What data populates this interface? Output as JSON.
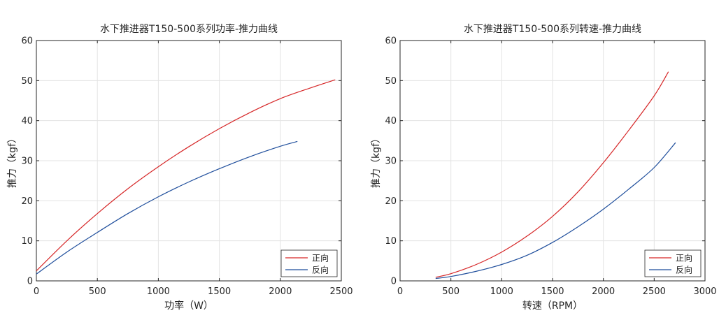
{
  "chart_data": [
    {
      "type": "line",
      "title": "水下推进器T150-500系列功率-推力曲线",
      "xlabel": "功率（W）",
      "ylabel": "推力（kgf）",
      "xlim": [
        0,
        2500
      ],
      "ylim": [
        0,
        60
      ],
      "xticks": [
        0,
        500,
        1000,
        1500,
        2000,
        2500
      ],
      "yticks": [
        0,
        10,
        20,
        30,
        40,
        50,
        60
      ],
      "grid": true,
      "legend_position": "bottom-right",
      "series": [
        {
          "name": "正向",
          "color": "#d62728",
          "x": [
            0,
            250,
            500,
            750,
            1000,
            1250,
            1500,
            1750,
            2000,
            2250,
            2450
          ],
          "y": [
            2.5,
            10.0,
            16.8,
            23.0,
            28.5,
            33.5,
            38.0,
            42.0,
            45.5,
            48.2,
            50.2
          ]
        },
        {
          "name": "反向",
          "color": "#1f4e9c",
          "x": [
            0,
            250,
            500,
            750,
            1000,
            1250,
            1500,
            1750,
            2000,
            2140
          ],
          "y": [
            1.7,
            7.2,
            12.1,
            16.8,
            21.0,
            24.7,
            28.0,
            31.0,
            33.6,
            34.8
          ]
        }
      ]
    },
    {
      "type": "line",
      "title": "水下推进器T150-500系列转速-推力曲线",
      "xlabel": "转速（RPM）",
      "ylabel": "推力（kgf）",
      "xlim": [
        0,
        3000
      ],
      "ylim": [
        0,
        60
      ],
      "xticks": [
        0,
        500,
        1000,
        1500,
        2000,
        2500,
        3000
      ],
      "yticks": [
        0,
        10,
        20,
        30,
        40,
        50,
        60
      ],
      "grid": true,
      "legend_position": "bottom-right",
      "series": [
        {
          "name": "正向",
          "color": "#d62728",
          "x": [
            350,
            500,
            750,
            1000,
            1250,
            1500,
            1750,
            2000,
            2250,
            2500,
            2640
          ],
          "y": [
            0.9,
            1.8,
            4.1,
            7.2,
            11.2,
            16.1,
            22.2,
            29.5,
            37.6,
            46.2,
            52.2
          ]
        },
        {
          "name": "反向",
          "color": "#1f4e9c",
          "x": [
            350,
            500,
            750,
            1000,
            1250,
            1500,
            1750,
            2000,
            2250,
            2500,
            2710
          ],
          "y": [
            0.6,
            1.1,
            2.4,
            4.1,
            6.4,
            9.6,
            13.5,
            17.9,
            22.9,
            28.3,
            34.5
          ]
        }
      ]
    }
  ]
}
